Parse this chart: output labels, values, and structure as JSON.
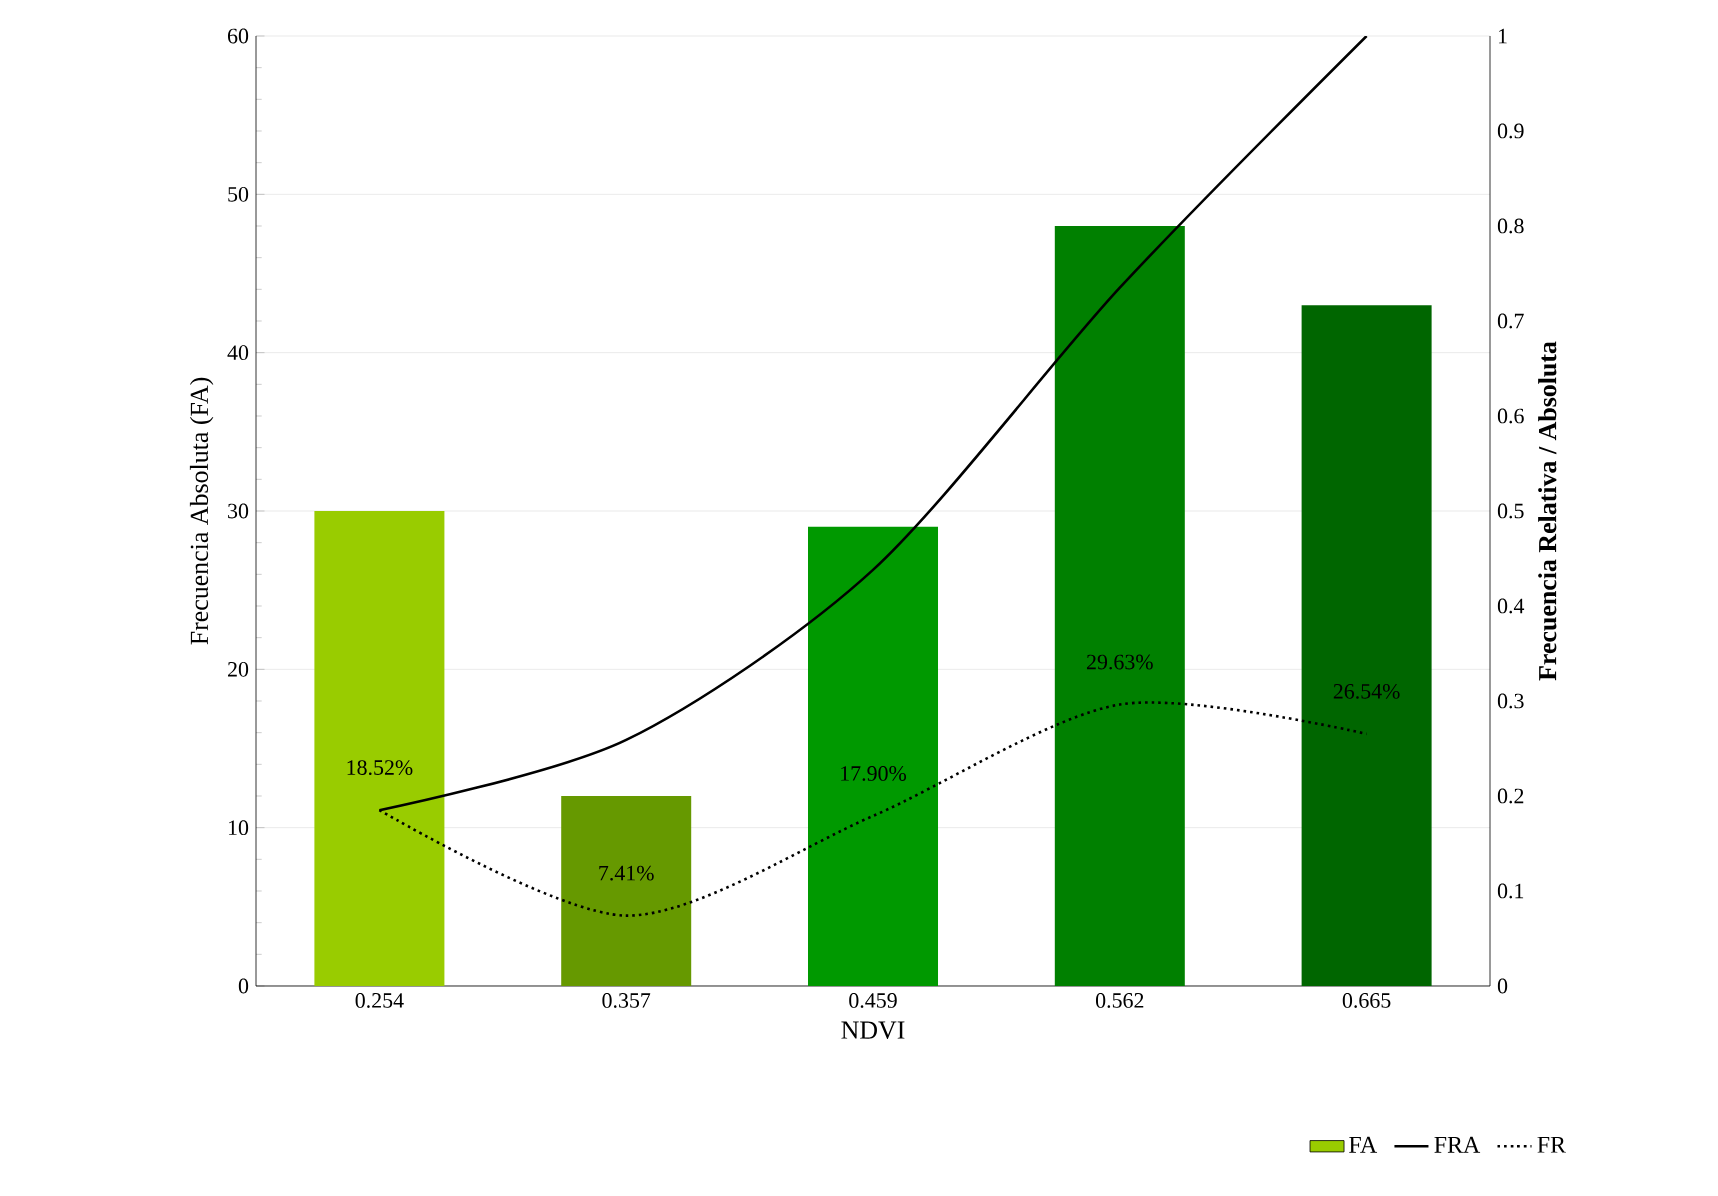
{
  "chart_data": {
    "type": "bar",
    "xlabel": "NDVI",
    "ylabel": "Frecuencia Absoluta (FA)",
    "y2label": "**Frecuencia Relativa / Absoluta**",
    "categories": [
      "0.254",
      "0.357",
      "0.459",
      "0.562",
      "0.665"
    ],
    "series": [
      {
        "name": "FA",
        "colors": [
          "#99cc00",
          "#669900",
          "#009900",
          "#008000",
          "#006600"
        ],
        "values": [
          30,
          12,
          29,
          48,
          43
        ]
      },
      {
        "name": "FRA",
        "type": "line",
        "axis": "y2",
        "color": "#000000",
        "line_style": "solid",
        "values": [
          0.185,
          0.259,
          0.438,
          0.735,
          1.0
        ]
      },
      {
        "name": "FR",
        "type": "line",
        "axis": "y2",
        "color": "#000000",
        "line_style": "dotted",
        "values": [
          0.1852,
          0.0741,
          0.179,
          0.2963,
          0.2654
        ],
        "value_labels": [
          "18.52%",
          "7.41%",
          "17.90%",
          "29.63%",
          "26.54%"
        ]
      }
    ],
    "ylim": [
      0,
      60
    ],
    "yticks": [
      0,
      10,
      20,
      30,
      40,
      50,
      60
    ],
    "y2lim": [
      0,
      1
    ],
    "y2ticks": [
      0,
      0.1,
      0.2,
      0.3,
      0.4,
      0.5,
      0.6,
      0.7,
      0.8,
      0.9,
      1
    ],
    "grid": "y",
    "legend": "bottom right",
    "marker": "none"
  }
}
